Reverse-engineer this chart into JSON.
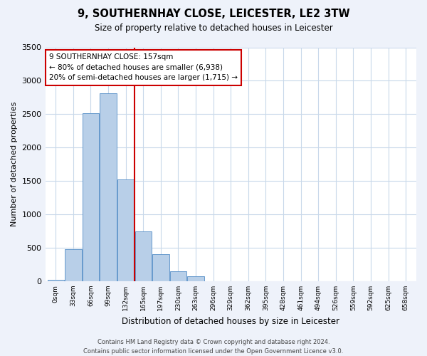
{
  "title": "9, SOUTHERNHAY CLOSE, LEICESTER, LE2 3TW",
  "subtitle": "Size of property relative to detached houses in Leicester",
  "xlabel": "Distribution of detached houses by size in Leicester",
  "ylabel": "Number of detached properties",
  "bar_color": "#b8cfe8",
  "bar_edge_color": "#6699cc",
  "vline_color": "#cc0000",
  "annotation_box_text": "9 SOUTHERNHAY CLOSE: 157sqm\n← 80% of detached houses are smaller (6,938)\n20% of semi-detached houses are larger (1,715) →",
  "annotation_box_color": "#ffffff",
  "annotation_box_edge_color": "#cc0000",
  "bin_labels": [
    "0sqm",
    "33sqm",
    "66sqm",
    "99sqm",
    "132sqm",
    "165sqm",
    "197sqm",
    "230sqm",
    "263sqm",
    "296sqm",
    "329sqm",
    "362sqm",
    "395sqm",
    "428sqm",
    "461sqm",
    "494sqm",
    "526sqm",
    "559sqm",
    "592sqm",
    "625sqm",
    "658sqm"
  ],
  "bar_heights": [
    20,
    480,
    2510,
    2810,
    1520,
    750,
    400,
    150,
    75,
    0,
    0,
    0,
    0,
    0,
    0,
    0,
    0,
    0,
    0,
    0,
    0
  ],
  "vline_x_index": 4.5,
  "ylim": [
    0,
    3500
  ],
  "yticks": [
    0,
    500,
    1000,
    1500,
    2000,
    2500,
    3000,
    3500
  ],
  "footer_text": "Contains HM Land Registry data © Crown copyright and database right 2024.\nContains public sector information licensed under the Open Government Licence v3.0.",
  "background_color": "#eef2fa",
  "plot_bg_color": "#ffffff",
  "grid_color": "#c8d8ea"
}
